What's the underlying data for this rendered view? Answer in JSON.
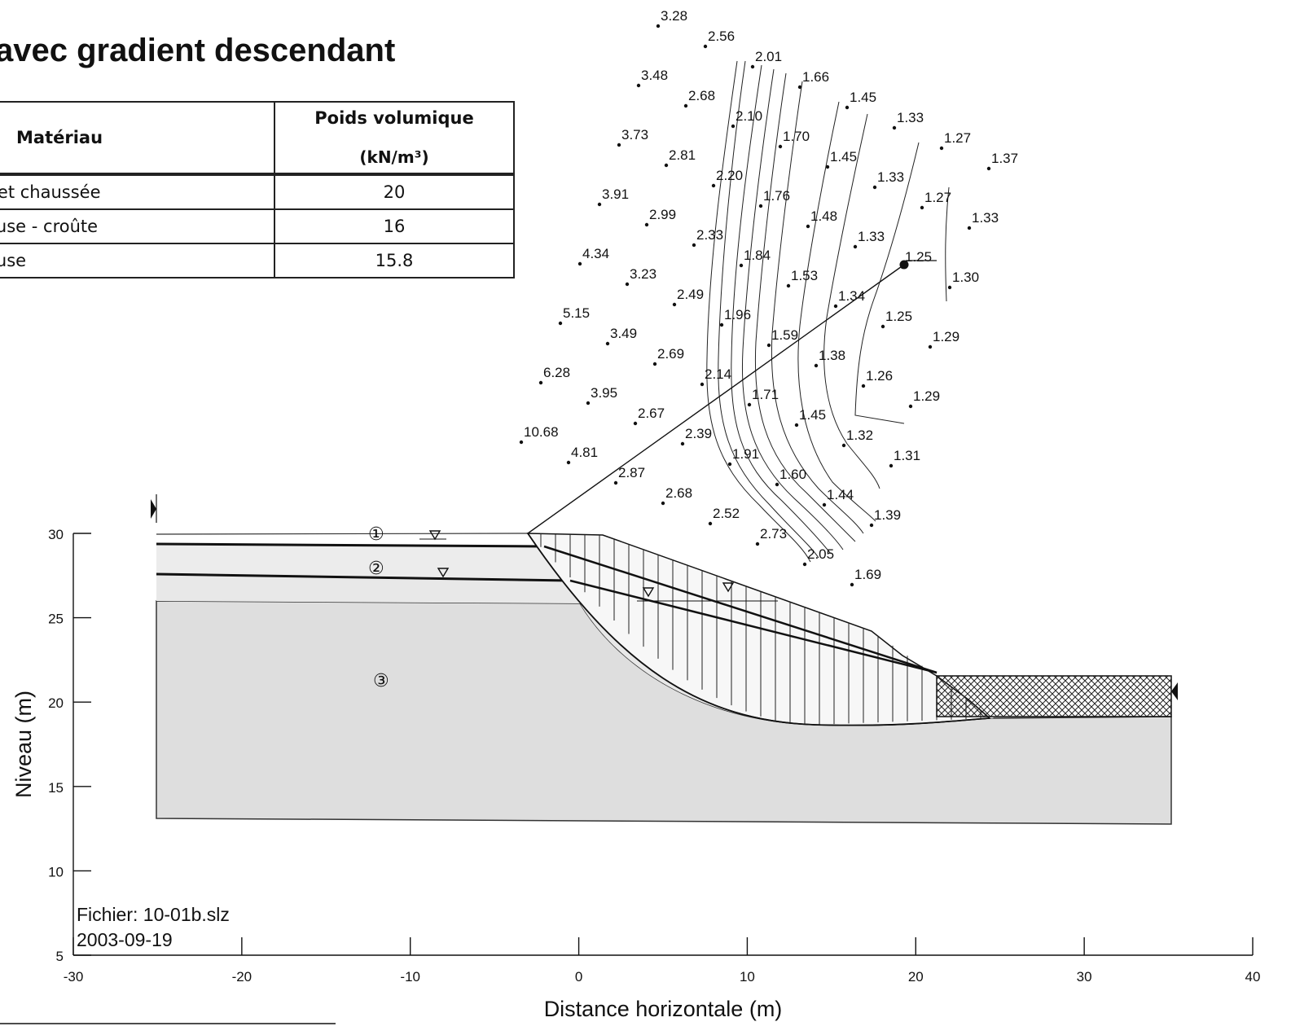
{
  "title": "avec gradient descendant",
  "table": {
    "headers": {
      "material": "Matériau",
      "poids_line1": "Poids volumique",
      "poids_line2": "(kN/m³)"
    },
    "rows": [
      {
        "material": "t et chaussée",
        "poids": "20"
      },
      {
        "material": "euse - croûte",
        "poids": "16"
      },
      {
        "material": "euse",
        "poids": "15.8"
      }
    ]
  },
  "chart_data": {
    "type": "scatter",
    "xlabel": "Distance horizontale (m)",
    "ylabel": "Niveau (m)",
    "xlim": [
      -30,
      40
    ],
    "ylim": [
      5,
      30
    ],
    "x_ticks": [
      "-30",
      "-20",
      "-10",
      "0",
      "10",
      "20",
      "30",
      "40"
    ],
    "y_ticks": [
      "5",
      "10",
      "15",
      "20",
      "25",
      "30"
    ],
    "file_label": "Fichier: 10-01b.slz",
    "date_label": "2003-09-19",
    "layers": [
      {
        "id": 1,
        "label": "①",
        "name": "t et chaussée",
        "unit_weight": 20
      },
      {
        "id": 2,
        "label": "②",
        "name": "euse - croûte",
        "unit_weight": 16
      },
      {
        "id": 3,
        "label": "③",
        "name": "euse",
        "unit_weight": 15.8
      }
    ],
    "critical_factor_of_safety": "1.25",
    "fs_grid": [
      [
        "3.28",
        "2.56",
        "2.01",
        "1.66",
        "1.45",
        "1.33",
        "1.27",
        "1.37"
      ],
      [
        "3.48",
        "2.68",
        "2.10",
        "1.70",
        "1.45",
        "1.33",
        "1.27",
        "1.33"
      ],
      [
        "3.73",
        "2.81",
        "2.20",
        "1.76",
        "1.48",
        "1.33",
        "1.25",
        "1.30"
      ],
      [
        "3.91",
        "2.99",
        "2.33",
        "1.84",
        "1.53",
        "1.34",
        "1.25",
        "1.29"
      ],
      [
        "4.34",
        "3.23",
        "2.49",
        "1.96",
        "1.59",
        "1.38",
        "1.26",
        "1.29"
      ],
      [
        "5.15",
        "3.49",
        "2.69",
        "2.14",
        "1.71",
        "1.45",
        "1.32",
        "1.31"
      ],
      [
        "6.28",
        "3.95",
        "2.67",
        "2.39",
        "1.91",
        "1.60",
        "1.44",
        "1.39"
      ],
      [
        "10.68",
        "4.81",
        "2.87",
        "2.68",
        "2.52",
        "2.73",
        "2.05",
        "1.69"
      ]
    ]
  }
}
